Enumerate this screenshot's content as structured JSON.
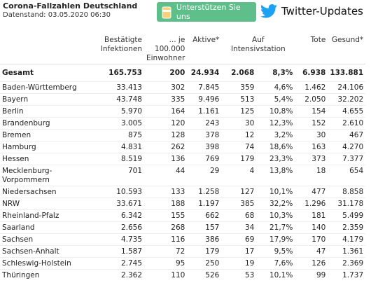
{
  "header": {
    "title": "Corona-Fallzahlen Deutschland",
    "subtitle": "Datenstand: 03.05.2020 06:30",
    "support_button": "Unterstützen Sie uns",
    "twitter_link": "Twitter-Updates"
  },
  "table": {
    "columns": [
      "Bestätigte\nInfektionen",
      "... je\n100.000\nEinwohner",
      "Aktive*",
      "Auf\nIntensivstation",
      "Tote",
      "Gesund*"
    ],
    "total": [
      "Gesamt",
      "165.753",
      "200",
      "24.934",
      "2.068",
      "8,3%",
      "6.938",
      "133.881"
    ],
    "rows": [
      [
        "Baden-Württemberg",
        "33.413",
        "302",
        "7.845",
        "359",
        "4,6%",
        "1.462",
        "24.106"
      ],
      [
        "Bayern",
        "43.748",
        "335",
        "9.496",
        "513",
        "5,4%",
        "2.050",
        "32.202"
      ],
      [
        "Berlin",
        "5.970",
        "164",
        "1.161",
        "125",
        "10,8%",
        "154",
        "4.655"
      ],
      [
        "Brandenburg",
        "3.005",
        "120",
        "243",
        "30",
        "12,3%",
        "152",
        "2.610"
      ],
      [
        "Bremen",
        "875",
        "128",
        "378",
        "12",
        "3,2%",
        "30",
        "467"
      ],
      [
        "Hamburg",
        "4.831",
        "262",
        "398",
        "74",
        "18,6%",
        "163",
        "4.270"
      ],
      [
        "Hessen",
        "8.519",
        "136",
        "769",
        "179",
        "23,3%",
        "373",
        "7.377"
      ],
      [
        "Mecklenburg-Vorpommern",
        "701",
        "44",
        "29",
        "4",
        "13,8%",
        "18",
        "654"
      ],
      [
        "Niedersachsen",
        "10.593",
        "133",
        "1.258",
        "127",
        "10,1%",
        "477",
        "8.858"
      ],
      [
        "NRW",
        "33.671",
        "188",
        "1.197",
        "385",
        "32,2%",
        "1.296",
        "31.178"
      ],
      [
        "Rheinland-Pfalz",
        "6.342",
        "155",
        "662",
        "68",
        "10,3%",
        "181",
        "5.499"
      ],
      [
        "Saarland",
        "2.656",
        "268",
        "157",
        "34",
        "21,7%",
        "140",
        "2.359"
      ],
      [
        "Sachsen",
        "4.735",
        "116",
        "386",
        "69",
        "17,9%",
        "170",
        "4.179"
      ],
      [
        "Sachsen-Anhalt",
        "1.587",
        "72",
        "179",
        "17",
        "9,5%",
        "47",
        "1.361"
      ],
      [
        "Schleswig-Holstein",
        "2.745",
        "95",
        "250",
        "19",
        "7,6%",
        "126",
        "2.369"
      ],
      [
        "Thüringen",
        "2.362",
        "110",
        "526",
        "53",
        "10,1%",
        "99",
        "1.737"
      ]
    ]
  }
}
